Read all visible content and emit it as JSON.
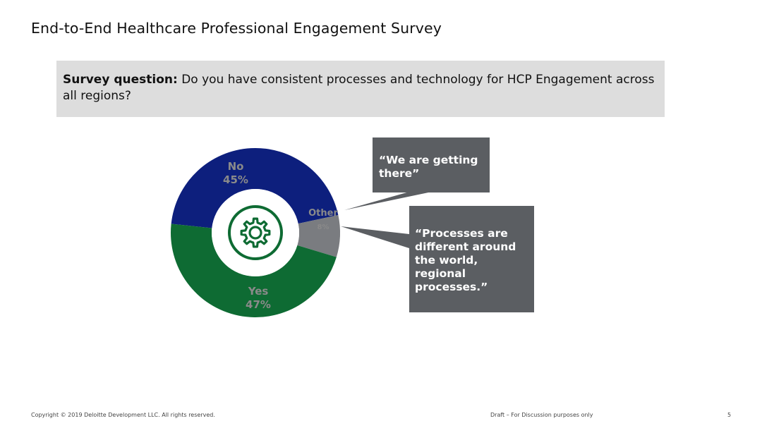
{
  "slide": {
    "title": "End-to-End Healthcare Professional Engagement Survey",
    "question_label": "Survey question:",
    "question_text": "Do you have consistent processes and technology for HCP Engagement across all regions?"
  },
  "chart_data": {
    "type": "pie",
    "variant": "donut",
    "slices": [
      {
        "label": "No",
        "value": 45,
        "display": "45%",
        "color": "#0d1f7d"
      },
      {
        "label": "Other",
        "value": 8,
        "display": "8%",
        "color": "#7a7c80"
      },
      {
        "label": "Yes",
        "value": 47,
        "display": "47%",
        "color": "#0e6b33"
      }
    ],
    "center_icon": "gear-icon",
    "center_icon_color": "#0e6b33"
  },
  "callouts": [
    {
      "text": "“We are getting\nthere”",
      "color": "#5b5e62"
    },
    {
      "text": "“Processes are\ndifferent around\nthe world,\nregional\nprocesses.”",
      "color": "#5b5e62"
    }
  ],
  "footer": {
    "copyright": "Copyright © 2019 Deloitte Development LLC. All rights reserved.",
    "draft": "Draft – For Discussion purposes only",
    "page_number": "5"
  }
}
